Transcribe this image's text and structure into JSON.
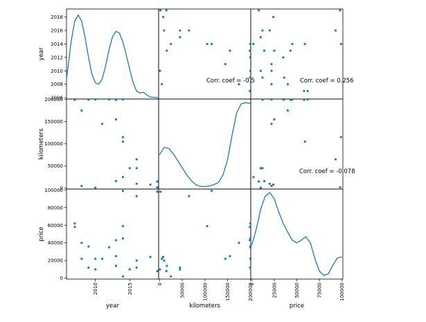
{
  "chart_data": {
    "type": "scatter",
    "subtype": "scatter_matrix",
    "variables": [
      "year",
      "kilometers",
      "price"
    ],
    "colors": {
      "marker": "#1f77b4",
      "kde": "#1f77b4",
      "frame": "#000000"
    },
    "axes": {
      "year": {
        "label": "year",
        "range": [
          2005.8,
          2019.2
        ],
        "xticks": [
          2010,
          2015
        ],
        "yticks": [
          2006,
          2008,
          2010,
          2012,
          2014,
          2016,
          2018
        ]
      },
      "kilometers": {
        "label": "kilometers",
        "range": [
          -2000,
          201000
        ],
        "xticks": [
          0,
          50000,
          100000,
          150000,
          200000
        ],
        "yticks": [
          0,
          50000,
          100000,
          150000,
          200000
        ]
      },
      "price": {
        "label": "price",
        "range": [
          -1000,
          101000
        ],
        "xticks": [
          0,
          25000,
          50000,
          75000,
          100000
        ],
        "yticks": [
          0,
          20000,
          40000,
          60000,
          80000,
          100000
        ]
      }
    },
    "records": [
      {
        "year": 2007,
        "kilometers": 200000,
        "price": 62000
      },
      {
        "year": 2007,
        "kilometers": 199000,
        "price": 58000
      },
      {
        "year": 2008,
        "kilometers": 175000,
        "price": 40000
      },
      {
        "year": 2008,
        "kilometers": 5000,
        "price": 22000
      },
      {
        "year": 2009,
        "kilometers": 200000,
        "price": 36000
      },
      {
        "year": 2009,
        "kilometers": 199500,
        "price": 12000
      },
      {
        "year": 2010,
        "kilometers": 200000,
        "price": 22000
      },
      {
        "year": 2010,
        "kilometers": 1000,
        "price": 10000
      },
      {
        "year": 2011,
        "kilometers": 145000,
        "price": 22000
      },
      {
        "year": 2012,
        "kilometers": 200000,
        "price": 35000
      },
      {
        "year": 2013,
        "kilometers": 199000,
        "price": 43000
      },
      {
        "year": 2013,
        "kilometers": 155000,
        "price": 25000
      },
      {
        "year": 2013,
        "kilometers": 16000,
        "price": 14000
      },
      {
        "year": 2014,
        "kilometers": 200000,
        "price": 45000
      },
      {
        "year": 2014,
        "kilometers": 115000,
        "price": 99000
      },
      {
        "year": 2014,
        "kilometers": 105000,
        "price": 59000
      },
      {
        "year": 2014,
        "kilometers": 25000,
        "price": 2000
      },
      {
        "year": 2015,
        "kilometers": 45000,
        "price": 10000
      },
      {
        "year": 2016,
        "kilometers": 65000,
        "price": 93000
      },
      {
        "year": 2016,
        "kilometers": 45000,
        "price": 12000
      },
      {
        "year": 2016,
        "kilometers": 10000,
        "price": 20000
      },
      {
        "year": 2018,
        "kilometers": 8000,
        "price": 24000
      },
      {
        "year": 2019,
        "kilometers": 2000,
        "price": 98000
      },
      {
        "year": 2019,
        "kilometers": 15000,
        "price": 8000
      }
    ],
    "kde": {
      "year": [
        [
          2005.8,
          2008.8
        ],
        [
          2006.5,
          2014.5
        ],
        [
          2007,
          2017.4
        ],
        [
          2007.5,
          2018.3
        ],
        [
          2008,
          2017.4
        ],
        [
          2008.5,
          2015.0
        ],
        [
          2009,
          2012.0
        ],
        [
          2009.5,
          2009.5
        ],
        [
          2010,
          2008.2
        ],
        [
          2010.5,
          2008.0
        ],
        [
          2011,
          2008.8
        ],
        [
          2011.5,
          2010.8
        ],
        [
          2012,
          2013.2
        ],
        [
          2012.5,
          2015.1
        ],
        [
          2013,
          2015.9
        ],
        [
          2013.5,
          2015.6
        ],
        [
          2014,
          2014.3
        ],
        [
          2014.5,
          2012.3
        ],
        [
          2015,
          2010.2
        ],
        [
          2015.5,
          2008.2
        ],
        [
          2016,
          2007.0
        ],
        [
          2016.5,
          2006.7
        ],
        [
          2017,
          2006.8
        ],
        [
          2017.5,
          2006.4
        ],
        [
          2018,
          2006.1
        ],
        [
          2019.2,
          2006.0
        ]
      ],
      "kilometers": [
        [
          0,
          75000
        ],
        [
          10000,
          92000
        ],
        [
          20000,
          90000
        ],
        [
          30000,
          78000
        ],
        [
          40000,
          62000
        ],
        [
          50000,
          46000
        ],
        [
          60000,
          30000
        ],
        [
          70000,
          17000
        ],
        [
          80000,
          8000
        ],
        [
          90000,
          4000
        ],
        [
          100000,
          3500
        ],
        [
          110000,
          5000
        ],
        [
          120000,
          8000
        ],
        [
          130000,
          13000
        ],
        [
          140000,
          30000
        ],
        [
          150000,
          65000
        ],
        [
          160000,
          120000
        ],
        [
          170000,
          170000
        ],
        [
          180000,
          190000
        ],
        [
          190000,
          193000
        ],
        [
          200000,
          191000
        ]
      ],
      "price": [
        [
          0,
          37000
        ],
        [
          5000,
          55000
        ],
        [
          10000,
          78000
        ],
        [
          15000,
          93000
        ],
        [
          20000,
          97000
        ],
        [
          25000,
          90000
        ],
        [
          30000,
          75000
        ],
        [
          35000,
          62000
        ],
        [
          40000,
          52000
        ],
        [
          45000,
          43000
        ],
        [
          50000,
          40000
        ],
        [
          55000,
          43000
        ],
        [
          60000,
          47000
        ],
        [
          65000,
          40000
        ],
        [
          70000,
          22000
        ],
        [
          75000,
          8000
        ],
        [
          80000,
          3000
        ],
        [
          85000,
          5000
        ],
        [
          90000,
          15000
        ],
        [
          95000,
          23000
        ],
        [
          100000,
          24000
        ]
      ]
    },
    "annotations": [
      {
        "row": 0,
        "col": 1,
        "text": "Corr. coef = -0.5"
      },
      {
        "row": 0,
        "col": 2,
        "text": "Corr. coef = 0.256"
      },
      {
        "row": 1,
        "col": 2,
        "text": "Corr. coef = -0.078"
      }
    ]
  }
}
